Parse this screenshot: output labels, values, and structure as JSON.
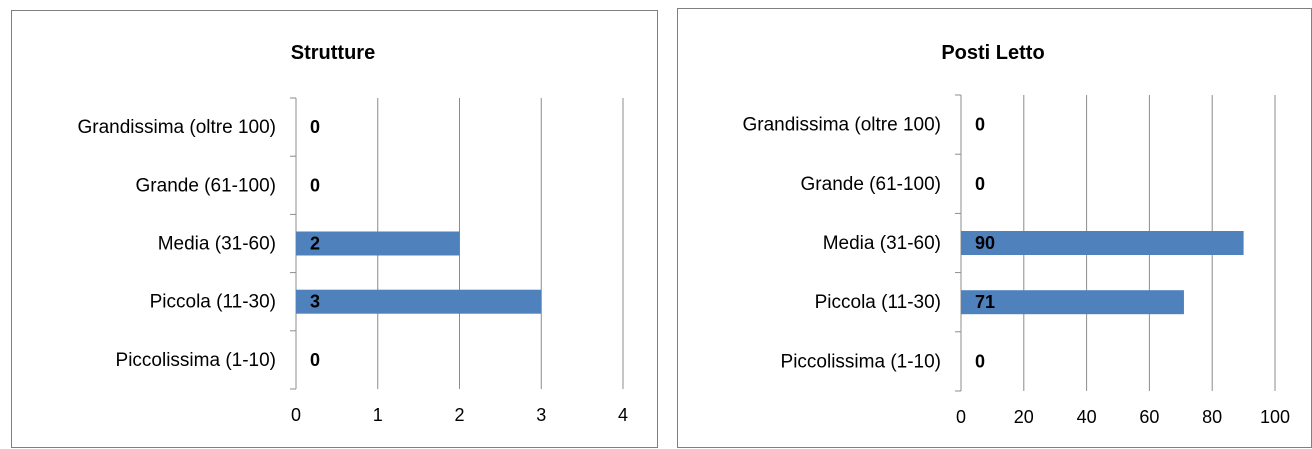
{
  "chart_data": [
    {
      "type": "bar",
      "orientation": "horizontal",
      "title": "Strutture",
      "categories": [
        "Grandissima (oltre 100)",
        "Grande (61-100)",
        "Media (31-60)",
        "Piccola (11-30)",
        "Piccolissima (1-10)"
      ],
      "values": [
        0,
        0,
        2,
        3,
        0
      ],
      "xticks": [
        "0",
        "1",
        "2",
        "3",
        "4"
      ],
      "xlim": [
        0,
        4
      ],
      "grid": true,
      "legend": "none",
      "color": "#4f81bd"
    },
    {
      "type": "bar",
      "orientation": "horizontal",
      "title": "Posti Letto",
      "categories": [
        "Grandissima (oltre 100)",
        "Grande (61-100)",
        "Media (31-60)",
        "Piccola (11-30)",
        "Piccolissima (1-10)"
      ],
      "values": [
        0,
        0,
        90,
        71,
        0
      ],
      "xticks": [
        "0",
        "20",
        "40",
        "60",
        "80",
        "100"
      ],
      "xlim": [
        0,
        100
      ],
      "grid": true,
      "legend": "none",
      "color": "#4f81bd"
    }
  ]
}
